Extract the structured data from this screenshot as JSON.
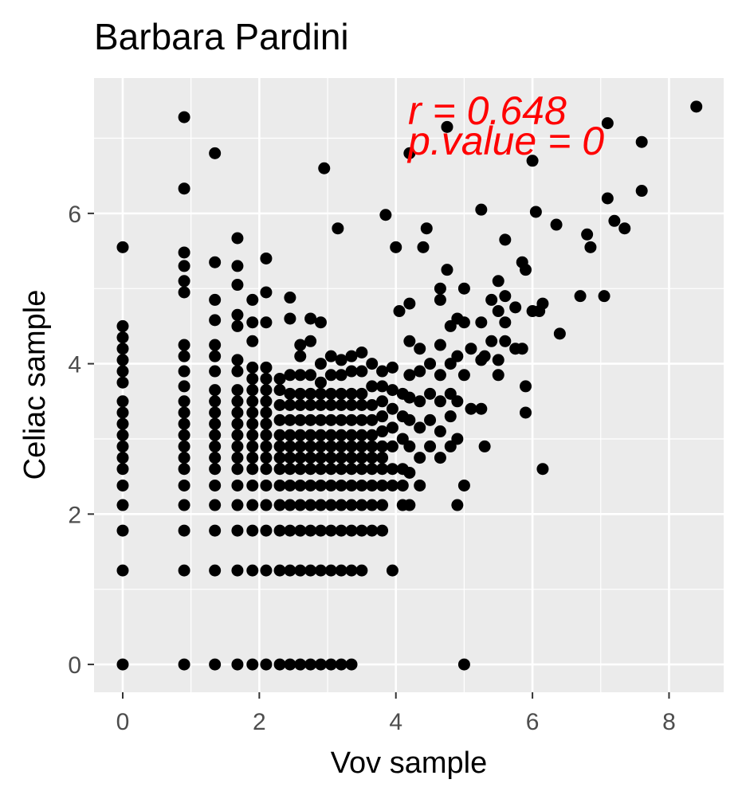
{
  "chart_data": {
    "type": "scatter",
    "title": "Barbara Pardini",
    "xlabel": "Vov sample",
    "ylabel": "Celiac sample",
    "xlim": [
      -0.42,
      8.8
    ],
    "ylim": [
      -0.37,
      7.8
    ],
    "xticks": [
      0,
      2,
      4,
      6,
      8
    ],
    "yticks": [
      0,
      2,
      4,
      6
    ],
    "x_tick_labels": [
      "0",
      "2",
      "4",
      "6",
      "8"
    ],
    "y_tick_labels": [
      "0",
      "2",
      "4",
      "6"
    ],
    "grid": true,
    "background": "#ebebeb",
    "point_color": "#000000",
    "annotations": [
      {
        "text": "r = 0.648",
        "color": "#ff0000"
      },
      {
        "text": "p.value = 0",
        "color": "#ff0000"
      }
    ],
    "points": [
      [
        0,
        0
      ],
      [
        0,
        1.25
      ],
      [
        0,
        1.78
      ],
      [
        0,
        2.12
      ],
      [
        0,
        2.38
      ],
      [
        0,
        2.6
      ],
      [
        0,
        2.75
      ],
      [
        0,
        2.9
      ],
      [
        0,
        3.05
      ],
      [
        0,
        3.2
      ],
      [
        0,
        3.35
      ],
      [
        0,
        3.5
      ],
      [
        0,
        3.75
      ],
      [
        0,
        3.9
      ],
      [
        0,
        4.05
      ],
      [
        0,
        4.2
      ],
      [
        0,
        4.35
      ],
      [
        0,
        4.5
      ],
      [
        0,
        5.55
      ],
      [
        0.9,
        0
      ],
      [
        0.9,
        1.25
      ],
      [
        0.9,
        1.78
      ],
      [
        0.9,
        2.12
      ],
      [
        0.9,
        2.38
      ],
      [
        0.9,
        2.6
      ],
      [
        0.9,
        2.75
      ],
      [
        0.9,
        2.9
      ],
      [
        0.9,
        3.05
      ],
      [
        0.9,
        3.2
      ],
      [
        0.9,
        3.35
      ],
      [
        0.9,
        3.5
      ],
      [
        0.9,
        3.7
      ],
      [
        0.9,
        3.9
      ],
      [
        0.9,
        4.1
      ],
      [
        0.9,
        4.25
      ],
      [
        0.9,
        4.95
      ],
      [
        0.9,
        5.1
      ],
      [
        0.9,
        5.3
      ],
      [
        0.9,
        5.48
      ],
      [
        0.9,
        6.33
      ],
      [
        0.9,
        7.28
      ],
      [
        1.35,
        0
      ],
      [
        1.35,
        1.25
      ],
      [
        1.35,
        1.78
      ],
      [
        1.35,
        2.12
      ],
      [
        1.35,
        2.38
      ],
      [
        1.35,
        2.6
      ],
      [
        1.35,
        2.75
      ],
      [
        1.35,
        2.9
      ],
      [
        1.35,
        3.05
      ],
      [
        1.35,
        3.2
      ],
      [
        1.35,
        3.35
      ],
      [
        1.35,
        3.5
      ],
      [
        1.35,
        3.65
      ],
      [
        1.35,
        3.9
      ],
      [
        1.35,
        4.1
      ],
      [
        1.35,
        4.25
      ],
      [
        1.35,
        4.58
      ],
      [
        1.35,
        4.85
      ],
      [
        1.35,
        5.35
      ],
      [
        1.35,
        6.8
      ],
      [
        1.68,
        0
      ],
      [
        1.68,
        1.25
      ],
      [
        1.68,
        1.78
      ],
      [
        1.68,
        2.12
      ],
      [
        1.68,
        2.38
      ],
      [
        1.68,
        2.6
      ],
      [
        1.68,
        2.75
      ],
      [
        1.68,
        2.9
      ],
      [
        1.68,
        3.05
      ],
      [
        1.68,
        3.2
      ],
      [
        1.68,
        3.35
      ],
      [
        1.68,
        3.5
      ],
      [
        1.68,
        3.65
      ],
      [
        1.68,
        3.9
      ],
      [
        1.68,
        4.05
      ],
      [
        1.68,
        4.5
      ],
      [
        1.68,
        4.65
      ],
      [
        1.68,
        5.05
      ],
      [
        1.68,
        5.3
      ],
      [
        1.68,
        5.67
      ],
      [
        1.9,
        0
      ],
      [
        1.9,
        1.25
      ],
      [
        1.9,
        1.78
      ],
      [
        1.9,
        2.12
      ],
      [
        1.9,
        2.38
      ],
      [
        1.9,
        2.6
      ],
      [
        1.9,
        2.75
      ],
      [
        1.9,
        2.9
      ],
      [
        1.9,
        3.05
      ],
      [
        1.9,
        3.2
      ],
      [
        1.9,
        3.35
      ],
      [
        1.9,
        3.5
      ],
      [
        1.9,
        3.65
      ],
      [
        1.9,
        3.8
      ],
      [
        1.9,
        3.95
      ],
      [
        1.9,
        4.3
      ],
      [
        1.9,
        4.55
      ],
      [
        1.9,
        4.85
      ],
      [
        2.1,
        0
      ],
      [
        2.1,
        1.25
      ],
      [
        2.1,
        1.78
      ],
      [
        2.1,
        2.12
      ],
      [
        2.1,
        2.38
      ],
      [
        2.1,
        2.6
      ],
      [
        2.1,
        2.75
      ],
      [
        2.1,
        2.9
      ],
      [
        2.1,
        3.05
      ],
      [
        2.1,
        3.2
      ],
      [
        2.1,
        3.35
      ],
      [
        2.1,
        3.5
      ],
      [
        2.1,
        3.65
      ],
      [
        2.1,
        3.8
      ],
      [
        2.1,
        3.95
      ],
      [
        2.1,
        4.55
      ],
      [
        2.1,
        4.95
      ],
      [
        2.1,
        5.4
      ],
      [
        2.3,
        0
      ],
      [
        2.3,
        1.25
      ],
      [
        2.3,
        1.78
      ],
      [
        2.3,
        2.12
      ],
      [
        2.3,
        2.38
      ],
      [
        2.3,
        2.6
      ],
      [
        2.3,
        2.75
      ],
      [
        2.3,
        2.9
      ],
      [
        2.3,
        3.05
      ],
      [
        2.3,
        3.25
      ],
      [
        2.3,
        3.45
      ],
      [
        2.3,
        3.65
      ],
      [
        2.3,
        3.8
      ],
      [
        2.45,
        0
      ],
      [
        2.45,
        1.25
      ],
      [
        2.45,
        1.78
      ],
      [
        2.45,
        2.12
      ],
      [
        2.45,
        2.38
      ],
      [
        2.45,
        2.6
      ],
      [
        2.45,
        2.75
      ],
      [
        2.45,
        2.9
      ],
      [
        2.45,
        3.05
      ],
      [
        2.45,
        3.25
      ],
      [
        2.45,
        3.45
      ],
      [
        2.45,
        3.6
      ],
      [
        2.45,
        3.85
      ],
      [
        2.45,
        4.6
      ],
      [
        2.45,
        4.88
      ],
      [
        2.6,
        0
      ],
      [
        2.6,
        1.25
      ],
      [
        2.6,
        1.78
      ],
      [
        2.6,
        2.12
      ],
      [
        2.6,
        2.38
      ],
      [
        2.6,
        2.6
      ],
      [
        2.6,
        2.75
      ],
      [
        2.6,
        2.9
      ],
      [
        2.6,
        3.05
      ],
      [
        2.6,
        3.25
      ],
      [
        2.6,
        3.45
      ],
      [
        2.6,
        3.6
      ],
      [
        2.6,
        3.85
      ],
      [
        2.6,
        4.1
      ],
      [
        2.6,
        4.25
      ],
      [
        2.75,
        0
      ],
      [
        2.75,
        1.25
      ],
      [
        2.75,
        1.78
      ],
      [
        2.75,
        2.12
      ],
      [
        2.75,
        2.38
      ],
      [
        2.75,
        2.6
      ],
      [
        2.75,
        2.75
      ],
      [
        2.75,
        2.9
      ],
      [
        2.75,
        3.05
      ],
      [
        2.75,
        3.25
      ],
      [
        2.75,
        3.45
      ],
      [
        2.75,
        3.6
      ],
      [
        2.75,
        3.85
      ],
      [
        2.75,
        4.3
      ],
      [
        2.75,
        4.6
      ],
      [
        2.9,
        0
      ],
      [
        2.9,
        1.25
      ],
      [
        2.9,
        1.78
      ],
      [
        2.9,
        2.12
      ],
      [
        2.9,
        2.38
      ],
      [
        2.9,
        2.6
      ],
      [
        2.9,
        2.75
      ],
      [
        2.9,
        2.9
      ],
      [
        2.9,
        3.05
      ],
      [
        2.9,
        3.25
      ],
      [
        2.9,
        3.45
      ],
      [
        2.9,
        3.6
      ],
      [
        2.9,
        3.75
      ],
      [
        2.9,
        4.0
      ],
      [
        2.9,
        4.55
      ],
      [
        3.05,
        0
      ],
      [
        3.05,
        1.25
      ],
      [
        3.05,
        1.78
      ],
      [
        3.05,
        2.12
      ],
      [
        3.05,
        2.38
      ],
      [
        3.05,
        2.6
      ],
      [
        3.05,
        2.75
      ],
      [
        3.05,
        2.9
      ],
      [
        3.05,
        3.05
      ],
      [
        3.05,
        3.25
      ],
      [
        3.05,
        3.45
      ],
      [
        3.05,
        3.6
      ],
      [
        3.05,
        3.85
      ],
      [
        3.05,
        4.1
      ],
      [
        3.2,
        0
      ],
      [
        3.2,
        1.25
      ],
      [
        3.2,
        1.78
      ],
      [
        3.2,
        2.12
      ],
      [
        3.2,
        2.38
      ],
      [
        3.2,
        2.6
      ],
      [
        3.2,
        2.75
      ],
      [
        3.2,
        2.9
      ],
      [
        3.2,
        3.05
      ],
      [
        3.2,
        3.25
      ],
      [
        3.2,
        3.45
      ],
      [
        3.2,
        3.6
      ],
      [
        3.2,
        3.85
      ],
      [
        3.2,
        4.05
      ],
      [
        3.35,
        0
      ],
      [
        3.35,
        1.25
      ],
      [
        3.35,
        1.78
      ],
      [
        3.35,
        2.12
      ],
      [
        3.35,
        2.38
      ],
      [
        3.35,
        2.6
      ],
      [
        3.35,
        2.75
      ],
      [
        3.35,
        2.9
      ],
      [
        3.35,
        3.05
      ],
      [
        3.35,
        3.25
      ],
      [
        3.35,
        3.45
      ],
      [
        3.35,
        3.6
      ],
      [
        3.35,
        3.9
      ],
      [
        3.35,
        4.1
      ],
      [
        3.5,
        1.25
      ],
      [
        3.5,
        1.78
      ],
      [
        3.5,
        2.12
      ],
      [
        3.5,
        2.38
      ],
      [
        3.5,
        2.6
      ],
      [
        3.5,
        2.75
      ],
      [
        3.5,
        2.9
      ],
      [
        3.5,
        3.05
      ],
      [
        3.5,
        3.25
      ],
      [
        3.5,
        3.45
      ],
      [
        3.5,
        3.6
      ],
      [
        3.5,
        3.9
      ],
      [
        3.5,
        4.15
      ],
      [
        3.65,
        1.78
      ],
      [
        3.65,
        2.12
      ],
      [
        3.65,
        2.38
      ],
      [
        3.65,
        2.6
      ],
      [
        3.65,
        2.75
      ],
      [
        3.65,
        2.9
      ],
      [
        3.65,
        3.05
      ],
      [
        3.65,
        3.25
      ],
      [
        3.65,
        3.45
      ],
      [
        3.65,
        3.7
      ],
      [
        3.65,
        4.0
      ],
      [
        3.8,
        1.78
      ],
      [
        3.8,
        2.12
      ],
      [
        3.8,
        2.38
      ],
      [
        3.8,
        2.6
      ],
      [
        3.8,
        2.75
      ],
      [
        3.8,
        2.9
      ],
      [
        3.8,
        3.1
      ],
      [
        3.8,
        3.3
      ],
      [
        3.8,
        3.5
      ],
      [
        3.8,
        3.7
      ],
      [
        3.8,
        3.9
      ],
      [
        3.95,
        1.25
      ],
      [
        3.95,
        2.38
      ],
      [
        3.95,
        2.6
      ],
      [
        3.95,
        2.9
      ],
      [
        3.95,
        3.15
      ],
      [
        3.95,
        3.4
      ],
      [
        3.95,
        3.65
      ],
      [
        3.95,
        3.95
      ],
      [
        4.1,
        2.12
      ],
      [
        4.1,
        2.38
      ],
      [
        4.1,
        2.6
      ],
      [
        4.1,
        3.0
      ],
      [
        4.1,
        3.3
      ],
      [
        4.1,
        3.6
      ],
      [
        4.2,
        2.12
      ],
      [
        4.2,
        2.55
      ],
      [
        4.2,
        2.9
      ],
      [
        4.2,
        3.25
      ],
      [
        4.2,
        3.55
      ],
      [
        4.2,
        3.85
      ],
      [
        4.2,
        4.3
      ],
      [
        4.35,
        2.38
      ],
      [
        4.35,
        2.75
      ],
      [
        4.35,
        3.15
      ],
      [
        4.35,
        3.5
      ],
      [
        4.35,
        3.9
      ],
      [
        4.35,
        4.2
      ],
      [
        4.5,
        2.9
      ],
      [
        4.5,
        3.25
      ],
      [
        4.5,
        3.6
      ],
      [
        4.5,
        4.0
      ],
      [
        4.65,
        2.75
      ],
      [
        4.65,
        3.1
      ],
      [
        4.65,
        3.5
      ],
      [
        4.65,
        3.85
      ],
      [
        4.65,
        4.25
      ],
      [
        4.65,
        4.85
      ],
      [
        4.65,
        5.0
      ],
      [
        4.8,
        2.9
      ],
      [
        4.8,
        3.3
      ],
      [
        4.8,
        3.6
      ],
      [
        4.8,
        4.0
      ],
      [
        4.8,
        4.5
      ],
      [
        4.9,
        2.12
      ],
      [
        4.9,
        3.0
      ],
      [
        4.9,
        3.5
      ],
      [
        4.9,
        4.1
      ],
      [
        4.9,
        4.6
      ],
      [
        5.0,
        0
      ],
      [
        5.0,
        2.38
      ],
      [
        5.0,
        3.85
      ],
      [
        5.0,
        4.55
      ],
      [
        5.0,
        5.0
      ],
      [
        5.1,
        3.4
      ],
      [
        5.1,
        4.2
      ],
      [
        5.25,
        3.4
      ],
      [
        5.25,
        4.05
      ],
      [
        5.25,
        4.55
      ],
      [
        5.25,
        6.05
      ],
      [
        5.3,
        2.9
      ],
      [
        5.3,
        4.1
      ],
      [
        5.4,
        4.3
      ],
      [
        5.4,
        4.85
      ],
      [
        5.5,
        3.85
      ],
      [
        5.5,
        4.05
      ],
      [
        5.5,
        4.7
      ],
      [
        5.5,
        5.1
      ],
      [
        5.6,
        4.3
      ],
      [
        5.6,
        4.55
      ],
      [
        5.6,
        4.9
      ],
      [
        5.6,
        5.65
      ],
      [
        5.75,
        4.2
      ],
      [
        5.75,
        4.75
      ],
      [
        5.85,
        4.2
      ],
      [
        5.85,
        5.35
      ],
      [
        5.9,
        3.35
      ],
      [
        5.9,
        3.7
      ],
      [
        5.9,
        5.25
      ],
      [
        6.0,
        4.7
      ],
      [
        6.0,
        6.7
      ],
      [
        6.05,
        6.02
      ],
      [
        6.1,
        4.7
      ],
      [
        6.15,
        2.6
      ],
      [
        6.15,
        4.8
      ],
      [
        6.35,
        5.85
      ],
      [
        6.4,
        4.4
      ],
      [
        6.7,
        4.9
      ],
      [
        6.8,
        5.72
      ],
      [
        6.85,
        5.55
      ],
      [
        7.05,
        4.9
      ],
      [
        7.1,
        6.2
      ],
      [
        7.1,
        7.2
      ],
      [
        7.2,
        5.9
      ],
      [
        7.35,
        5.8
      ],
      [
        7.6,
        6.3
      ],
      [
        7.6,
        6.95
      ],
      [
        8.4,
        7.42
      ],
      [
        2.95,
        6.6
      ],
      [
        3.15,
        5.8
      ],
      [
        3.85,
        5.98
      ],
      [
        4.0,
        5.55
      ],
      [
        4.05,
        4.7
      ],
      [
        4.2,
        4.8
      ],
      [
        4.2,
        6.8
      ],
      [
        4.4,
        5.55
      ],
      [
        4.45,
        5.8
      ],
      [
        4.75,
        5.25
      ],
      [
        4.75,
        7.15
      ]
    ]
  }
}
